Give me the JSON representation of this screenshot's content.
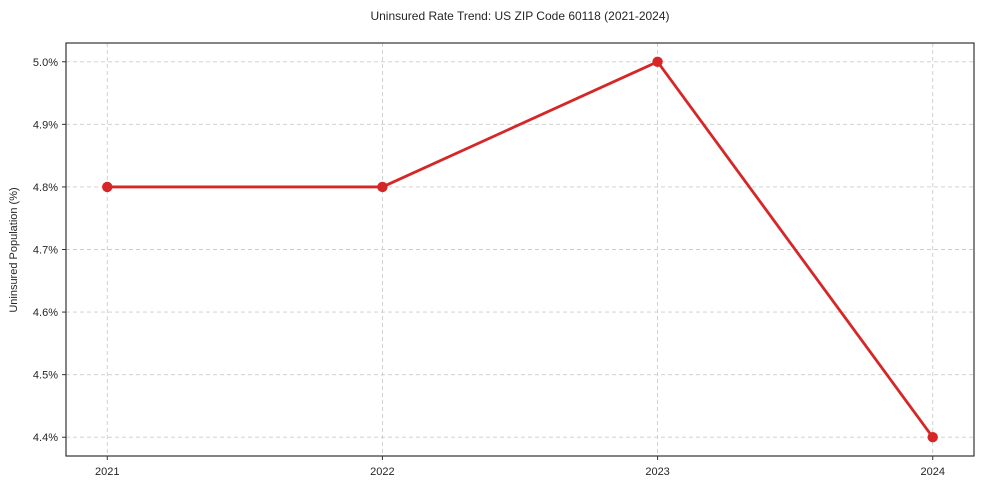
{
  "chart_data": {
    "type": "line",
    "title": "Uninsured Rate Trend: US ZIP Code 60118 (2021-2024)",
    "xlabel": "",
    "ylabel": "Uninsured Population (%)",
    "series": [
      {
        "name": "Uninsured Population (%)",
        "x": [
          2021,
          2022,
          2023,
          2024
        ],
        "values": [
          4.8,
          4.8,
          5.0,
          4.4
        ]
      }
    ],
    "xlim": [
      2020.85,
      2024.15
    ],
    "ylim": [
      4.37,
      5.03
    ],
    "xticks": [
      2021,
      2022,
      2023,
      2024
    ],
    "xtick_labels": [
      "2021",
      "2022",
      "2023",
      "2024"
    ],
    "yticks": [
      4.4,
      4.5,
      4.6,
      4.7,
      4.8,
      4.9,
      5.0
    ],
    "ytick_labels": [
      "4.4%",
      "4.5%",
      "4.6%",
      "4.7%",
      "4.8%",
      "4.9%",
      "5.0%"
    ],
    "grid": true,
    "grid_style": "dashed",
    "legend": "none",
    "marker": "circle",
    "colors": {
      "line": "#d62728",
      "marker": "#d62728",
      "grid": "#cccccc",
      "axis": "#333333",
      "text": "#262626",
      "background": "#ffffff"
    }
  }
}
